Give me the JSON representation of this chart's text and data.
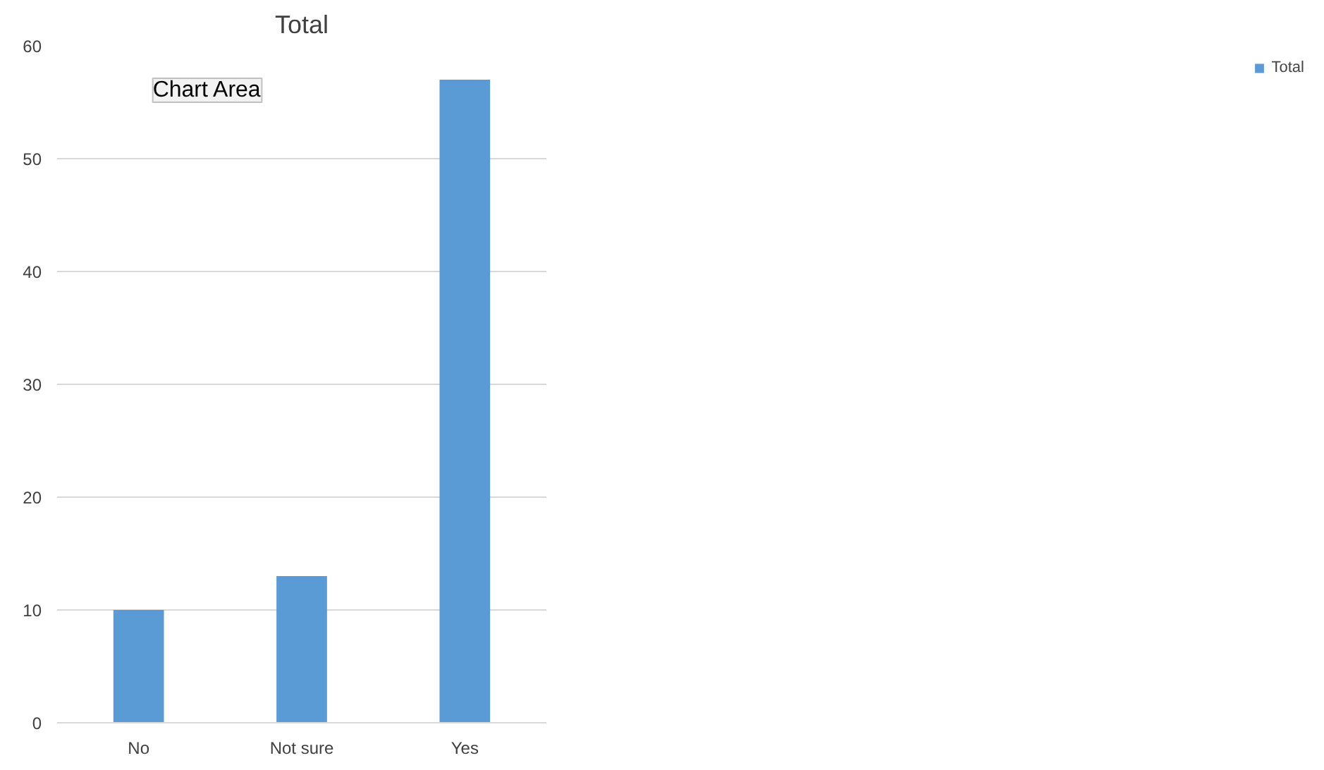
{
  "chart_data": {
    "type": "bar",
    "title": "Total",
    "categories": [
      "No",
      "Not sure",
      "Yes"
    ],
    "series": [
      {
        "name": "Total",
        "color": "#5b9bd5",
        "values": [
          10,
          13,
          57
        ]
      }
    ],
    "ylim": [
      0,
      60
    ],
    "yticks": [
      0,
      10,
      20,
      30,
      40,
      50,
      60
    ],
    "grid": "y",
    "legend": "right",
    "annotations": [
      "Chart Area"
    ]
  }
}
